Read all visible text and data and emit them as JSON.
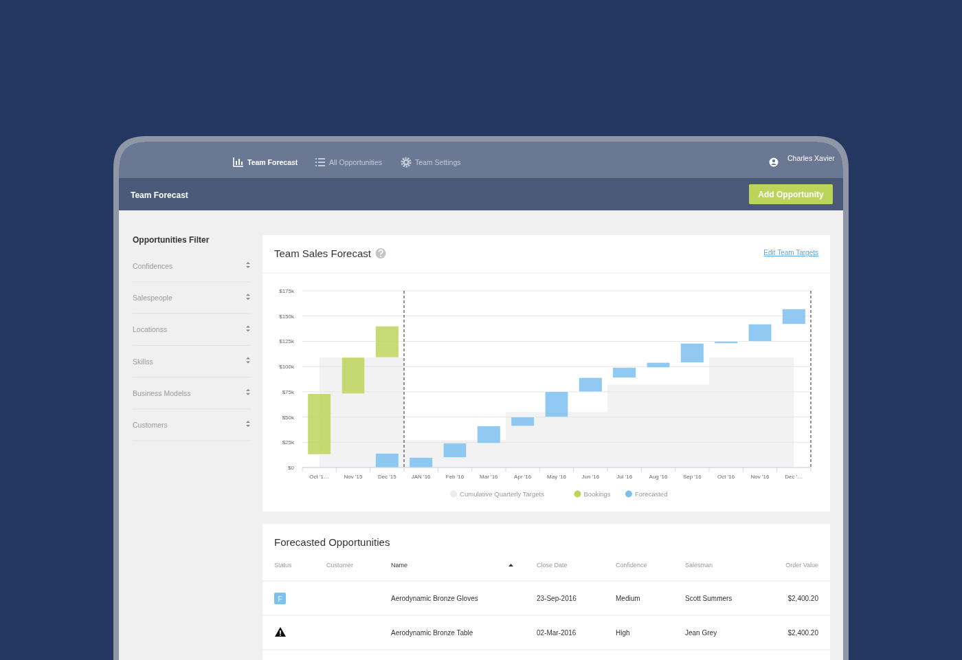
{
  "chart_data": [
    {
      "type": "other",
      "title": "Team Forecast",
      "annotations": [
        "Team Forecast",
        "All Opportunities",
        "Team Settings",
        "Charles Xavier",
        "Add Opportunity"
      ]
    },
    {
      "type": "other",
      "title": "Opportunities Filter",
      "annotations": [
        "Confidences",
        "Salespeople",
        "Locationss",
        "Skillss",
        "Business Modelss",
        "Customers"
      ]
    },
    {
      "type": "bar",
      "title": "Team Sales Forecast",
      "annotations": [
        "Edit Team Targets"
      ],
      "categories": [
        "Oct '1…",
        "Nov '15",
        "Dec '15",
        "JAN '16",
        "Feb '16",
        "Mar '16",
        "Apr '16",
        "May '16",
        "Jun '16",
        "Jul '16",
        "Aug '16",
        "Sep '16",
        "Oct '16",
        "Nov '16",
        "Dec '…"
      ],
      "series": [
        {
          "name": "Cumulative Quarterly Targets",
          "type": "area",
          "color": "#f2f2f2",
          "values": [
            109,
            109,
            109,
            27,
            27,
            27,
            55,
            55,
            55,
            82,
            82,
            82,
            109,
            109,
            109
          ]
        },
        {
          "name": "Bookings",
          "type": "bar",
          "color": "#bdd45a",
          "values": [
            60,
            36,
            31,
            null,
            null,
            null,
            null,
            null,
            null,
            null,
            null,
            null,
            null,
            null,
            null
          ],
          "base": [
            13,
            73,
            109,
            null,
            null,
            null,
            null,
            null,
            null,
            null,
            null,
            null,
            null,
            null,
            null
          ]
        },
        {
          "name": "Forecasted",
          "type": "bar",
          "color": "#7cc0ee",
          "values": [
            null,
            null,
            14,
            10,
            14,
            17,
            9,
            25,
            14,
            10,
            5,
            19,
            2,
            17,
            15
          ],
          "base": [
            null,
            null,
            0,
            0,
            10,
            24,
            41,
            50,
            75,
            89,
            99,
            104,
            123,
            125,
            142
          ]
        }
      ],
      "ylim": [
        0,
        175
      ],
      "yticks": [
        {
          "value": 0,
          "label": "$0"
        },
        {
          "value": 25,
          "label": "$25k"
        },
        {
          "value": 50,
          "label": "$50k"
        },
        {
          "value": 75,
          "label": "$75k"
        },
        {
          "value": 100,
          "label": "$100k"
        },
        {
          "value": 125,
          "label": "$125k"
        },
        {
          "value": 150,
          "label": "$150k"
        },
        {
          "value": 175,
          "label": "$175k"
        }
      ],
      "grid": "y",
      "legend": "bottom",
      "ref_lines": [
        {
          "axis": "x",
          "value": "JAN '16",
          "color": "#222222",
          "line_style": "dashed"
        },
        {
          "axis": "x",
          "value": "Dec '…",
          "color": "#222222",
          "line_style": "dashed"
        }
      ]
    },
    {
      "type": "other",
      "title": "Forecasted Opportunities",
      "annotations": [
        "Status",
        "Customer",
        "Name",
        "Close Date",
        "Confidence",
        "Salesman",
        "Order Value",
        "F",
        null,
        "Aerodynamic Bronze Gloves",
        "23-Sep-2016",
        "Medium",
        "Scott Summers",
        "$2,400.20",
        null,
        null,
        "Aerodynamic Bronze Table",
        "02-Mar-2016",
        "High",
        "Jean Grey",
        "$2,400.20"
      ]
    }
  ]
}
